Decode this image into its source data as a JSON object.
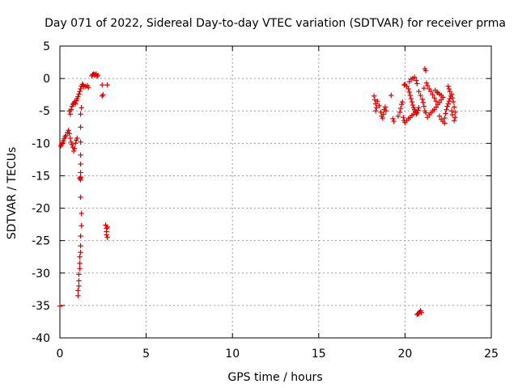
{
  "chart_data": {
    "type": "scatter",
    "title": "Day 071 of 2022, Sidereal Day-to-day VTEC variation (SDTVAR) for receiver prma",
    "xlabel": "GPS time / hours",
    "ylabel": "SDTVAR / TECUs",
    "xlim": [
      0,
      25
    ],
    "ylim": [
      -40,
      5
    ],
    "xticks": [
      0,
      5,
      10,
      15,
      20,
      25
    ],
    "yticks": [
      5,
      0,
      -5,
      -10,
      -15,
      -20,
      -25,
      -30,
      -35,
      -40
    ],
    "xtick_labels": [
      "0",
      "5",
      "10",
      "15",
      "20",
      "25"
    ],
    "ytick_labels": [
      "5",
      "0",
      "-5",
      "-10",
      "-15",
      "-20",
      "-25",
      "-30",
      "-35",
      "-40"
    ],
    "grid": true,
    "marker": "+",
    "color": "#e00000",
    "series": [
      {
        "name": "SDTVAR",
        "points": [
          [
            0.0,
            -35.1
          ],
          [
            0.05,
            -10.4
          ],
          [
            0.1,
            -10.2
          ],
          [
            0.15,
            -9.9
          ],
          [
            0.2,
            -9.6
          ],
          [
            0.25,
            -9.3
          ],
          [
            0.3,
            -9.0
          ],
          [
            0.35,
            -8.8
          ],
          [
            0.45,
            -8.3
          ],
          [
            0.5,
            -8.0
          ],
          [
            0.55,
            -8.5
          ],
          [
            0.6,
            -9.2
          ],
          [
            0.65,
            -9.8
          ],
          [
            0.7,
            -10.2
          ],
          [
            0.75,
            -10.6
          ],
          [
            0.8,
            -11.2
          ],
          [
            0.85,
            -10.8
          ],
          [
            0.9,
            -10.0
          ],
          [
            0.95,
            -9.5
          ],
          [
            1.0,
            -9.2
          ],
          [
            0.55,
            -5.0
          ],
          [
            0.6,
            -5.5
          ],
          [
            0.65,
            -4.8
          ],
          [
            0.7,
            -4.3
          ],
          [
            0.75,
            -4.0
          ],
          [
            0.8,
            -3.8
          ],
          [
            0.85,
            -3.6
          ],
          [
            0.9,
            -3.9
          ],
          [
            0.95,
            -3.4
          ],
          [
            1.0,
            -3.1
          ],
          [
            1.05,
            -2.8
          ],
          [
            1.1,
            -2.4
          ],
          [
            1.15,
            -2.0
          ],
          [
            1.2,
            -1.6
          ],
          [
            1.25,
            -1.2
          ],
          [
            1.3,
            -0.9
          ],
          [
            1.35,
            -1.0
          ],
          [
            1.4,
            -1.3
          ],
          [
            1.5,
            -1.2
          ],
          [
            1.6,
            -1.1
          ],
          [
            1.65,
            -1.4
          ],
          [
            1.2,
            -5.5
          ],
          [
            1.2,
            -7.5
          ],
          [
            1.2,
            -9.8
          ],
          [
            1.2,
            -11.8
          ],
          [
            1.2,
            -13.2
          ],
          [
            1.2,
            -14.5
          ],
          [
            1.2,
            -15.3
          ],
          [
            1.2,
            -15.6
          ],
          [
            1.2,
            -18.3
          ],
          [
            1.25,
            -20.8
          ],
          [
            1.25,
            -22.7
          ],
          [
            1.2,
            -24.3
          ],
          [
            1.2,
            -25.8
          ],
          [
            1.2,
            -26.8
          ],
          [
            1.15,
            -27.5
          ],
          [
            1.15,
            -28.5
          ],
          [
            1.15,
            -29.3
          ],
          [
            1.1,
            -30.2
          ],
          [
            1.1,
            -31.2
          ],
          [
            1.1,
            -32.0
          ],
          [
            1.05,
            -32.7
          ],
          [
            1.05,
            -33.5
          ],
          [
            1.25,
            -4.5
          ],
          [
            1.2,
            -15.2
          ],
          [
            1.15,
            -15.4
          ],
          [
            1.85,
            0.4
          ],
          [
            1.9,
            0.6
          ],
          [
            1.95,
            0.7
          ],
          [
            2.0,
            0.6
          ],
          [
            2.05,
            0.5
          ],
          [
            2.1,
            0.7
          ],
          [
            2.15,
            0.4
          ],
          [
            2.2,
            0.5
          ],
          [
            2.45,
            -1.0
          ],
          [
            2.5,
            -2.5
          ],
          [
            2.45,
            -2.7
          ],
          [
            2.75,
            -1.0
          ],
          [
            2.65,
            -22.6
          ],
          [
            2.7,
            -23.1
          ],
          [
            2.7,
            -23.6
          ],
          [
            2.7,
            -24.1
          ],
          [
            2.75,
            -24.5
          ],
          [
            2.75,
            -22.9
          ],
          [
            18.2,
            -2.7
          ],
          [
            18.25,
            -3.3
          ],
          [
            18.3,
            -3.9
          ],
          [
            18.35,
            -4.5
          ],
          [
            18.3,
            -5.0
          ],
          [
            18.4,
            -3.5
          ],
          [
            18.5,
            -4.2
          ],
          [
            18.6,
            -5.2
          ],
          [
            18.65,
            -5.8
          ],
          [
            18.7,
            -6.1
          ],
          [
            18.75,
            -5.5
          ],
          [
            18.8,
            -4.8
          ],
          [
            18.85,
            -4.4
          ],
          [
            18.9,
            -5.0
          ],
          [
            19.2,
            -2.6
          ],
          [
            19.3,
            -6.2
          ],
          [
            19.35,
            -6.6
          ],
          [
            19.6,
            -5.8
          ],
          [
            19.7,
            -5.2
          ],
          [
            19.75,
            -4.6
          ],
          [
            19.8,
            -4.0
          ],
          [
            19.85,
            -3.6
          ],
          [
            19.9,
            -6.0
          ],
          [
            19.95,
            -6.5
          ],
          [
            19.95,
            -1.0
          ],
          [
            20.0,
            -0.9
          ],
          [
            20.1,
            -1.2
          ],
          [
            20.2,
            -1.6
          ],
          [
            20.25,
            -2.1
          ],
          [
            20.3,
            -2.6
          ],
          [
            20.35,
            -3.1
          ],
          [
            20.4,
            -3.6
          ],
          [
            20.45,
            -4.1
          ],
          [
            20.5,
            -4.5
          ],
          [
            20.55,
            -4.8
          ],
          [
            20.6,
            -5.2
          ],
          [
            20.65,
            -5.5
          ],
          [
            20.7,
            -5.3
          ],
          [
            20.75,
            -4.9
          ],
          [
            20.8,
            -4.5
          ],
          [
            20.0,
            -6.8
          ],
          [
            20.1,
            -6.5
          ],
          [
            20.2,
            -6.2
          ],
          [
            20.3,
            -6.0
          ],
          [
            20.4,
            -5.7
          ],
          [
            20.5,
            -5.5
          ],
          [
            20.6,
            -5.1
          ],
          [
            20.25,
            -0.5
          ],
          [
            20.35,
            -0.1
          ],
          [
            20.45,
            0.0
          ],
          [
            20.55,
            0.2
          ],
          [
            20.65,
            -0.3
          ],
          [
            20.7,
            -0.8
          ],
          [
            20.8,
            -2.0
          ],
          [
            20.9,
            -2.6
          ],
          [
            21.0,
            -3.2
          ],
          [
            21.05,
            -3.7
          ],
          [
            21.1,
            -4.3
          ],
          [
            21.15,
            -5.0
          ],
          [
            21.2,
            -5.3
          ],
          [
            21.1,
            -1.5
          ],
          [
            21.15,
            1.5
          ],
          [
            21.2,
            1.2
          ],
          [
            21.25,
            -0.7
          ],
          [
            21.3,
            -1.1
          ],
          [
            21.4,
            -1.6
          ],
          [
            21.5,
            -2.0
          ],
          [
            21.6,
            -2.5
          ],
          [
            21.7,
            -3.0
          ],
          [
            21.8,
            -3.5
          ],
          [
            21.9,
            -4.0
          ],
          [
            22.0,
            -3.7
          ],
          [
            22.1,
            -3.3
          ],
          [
            22.2,
            -2.9
          ],
          [
            21.3,
            -6.0
          ],
          [
            21.4,
            -5.6
          ],
          [
            21.5,
            -5.3
          ],
          [
            21.6,
            -5.0
          ],
          [
            21.7,
            -4.8
          ],
          [
            21.8,
            -4.4
          ],
          [
            21.75,
            -1.8
          ],
          [
            21.85,
            -2.1
          ],
          [
            21.9,
            -2.2
          ],
          [
            22.0,
            -2.4
          ],
          [
            22.1,
            -2.6
          ],
          [
            22.2,
            -2.9
          ],
          [
            22.0,
            -5.8
          ],
          [
            22.1,
            -6.3
          ],
          [
            22.2,
            -6.6
          ],
          [
            22.3,
            -6.9
          ],
          [
            22.3,
            -6.1
          ],
          [
            22.35,
            -5.4
          ],
          [
            22.4,
            -4.8
          ],
          [
            22.45,
            -4.3
          ],
          [
            22.5,
            -3.9
          ],
          [
            22.55,
            -3.5
          ],
          [
            22.6,
            -3.1
          ],
          [
            22.65,
            -2.7
          ],
          [
            22.5,
            -1.2
          ],
          [
            22.55,
            -1.6
          ],
          [
            22.6,
            -2.0
          ],
          [
            22.7,
            -2.4
          ],
          [
            22.75,
            -3.0
          ],
          [
            22.8,
            -3.6
          ],
          [
            22.85,
            -4.4
          ],
          [
            22.9,
            -5.2
          ],
          [
            22.9,
            -6.0
          ],
          [
            22.85,
            -6.5
          ],
          [
            22.7,
            -5.0
          ],
          [
            22.75,
            -5.6
          ],
          [
            20.7,
            -36.4
          ],
          [
            20.8,
            -36.2
          ],
          [
            20.85,
            -36.0
          ],
          [
            20.9,
            -35.8
          ],
          [
            20.95,
            -36.1
          ],
          [
            20.75,
            -36.3
          ]
        ]
      }
    ]
  }
}
